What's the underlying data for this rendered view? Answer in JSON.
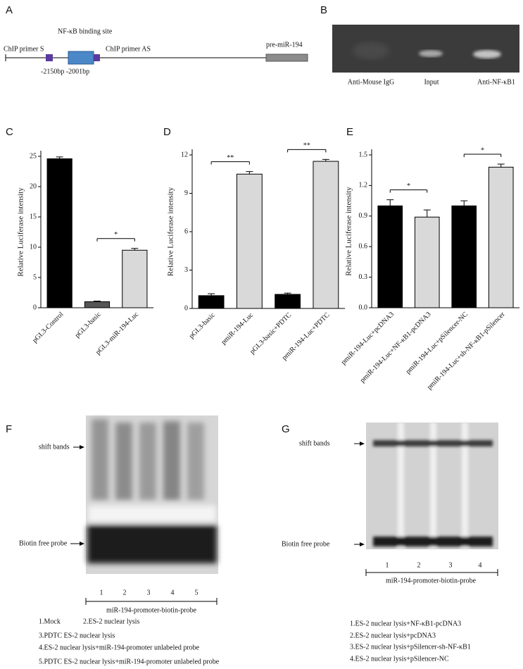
{
  "panels": {
    "A": {
      "label": "A",
      "binding_site": "NF-κB binding site",
      "primer_s": "ChIP primer S",
      "primer_as": "ChIP primer AS",
      "gene": "pre-miR-194",
      "positions": "-2150bp -2001bp"
    },
    "B": {
      "label": "B",
      "lanes": [
        "Anti-Mouse IgG",
        "Input",
        "Anti-NF-κB1"
      ]
    },
    "F": {
      "label": "F",
      "shift": "shift bands",
      "free": "Biotin free probe",
      "lanes": [
        1,
        2,
        3,
        4,
        5
      ],
      "probe": "miR-194-promoter-biotin-probe",
      "legend": [
        "1.Mock",
        "2.ES-2 nuclear lysis",
        "3.PDTC ES-2 nuclear lysis",
        "4.ES-2 nuclear lysis+miR-194-promoter unlabeled probe",
        "5.PDTC ES-2 nuclear lysis+miR-194-promoter unlabeled probe"
      ]
    },
    "G": {
      "label": "G",
      "shift": "shift bands",
      "free": "Biotin free probe",
      "lanes": [
        1,
        2,
        3,
        4
      ],
      "probe": "miR-194-promoter-biotin-probe",
      "legend": [
        "1.ES-2 nuclear lysis+NF-κB1-pcDNA3",
        "2.ES-2 nuclear lysis+pcDNA3",
        "3.ES-2 nuclear lysis+pSilencer-sh-NF-κB1",
        "4.ES-2 nuclear lysis+pSilencer-NC"
      ]
    }
  },
  "chart_data": [
    {
      "type": "bar",
      "panel": "C",
      "ylabel": "Relative Luciferase intensity",
      "categories": [
        "pGL3-Control",
        "pGL3-basic",
        "pGL3-miR-194-Luc"
      ],
      "values": [
        24.6,
        1.0,
        9.5
      ],
      "errors": [
        0.3,
        0.1,
        0.3
      ],
      "colors": [
        "#000000",
        "#555555",
        "#d9d9d9"
      ],
      "ylim": [
        0,
        25
      ],
      "yticks": [
        0,
        5,
        10,
        15,
        20,
        25
      ],
      "significance": [
        {
          "label": "*",
          "pair": [
            1,
            2
          ]
        }
      ]
    },
    {
      "type": "bar",
      "panel": "D",
      "ylabel": "Relative Luciferase intensity",
      "categories": [
        "pGL3-basic",
        "pmiR-194-Luc",
        "pGL3-basic+PDTC",
        "pmiR-194-Luc+PDTC"
      ],
      "values": [
        1.0,
        10.5,
        1.1,
        11.5
      ],
      "errors": [
        0.15,
        0.2,
        0.1,
        0.15
      ],
      "colors": [
        "#000000",
        "#d9d9d9",
        "#000000",
        "#d9d9d9"
      ],
      "ylim": [
        0,
        12
      ],
      "yticks": [
        0,
        3,
        6,
        9,
        12
      ],
      "significance": [
        {
          "label": "**",
          "pair": [
            0,
            1
          ]
        },
        {
          "label": "**",
          "pair": [
            2,
            3
          ]
        }
      ]
    },
    {
      "type": "bar",
      "panel": "E",
      "ylabel": "Relative Luciferase intensity",
      "categories": [
        "pmiR-194-Luc+pcDNA3",
        "pmiR-194-Luc+NF-κB1-pcDNA3",
        "pmiR-194-Luc+pSilencer-NC",
        "pmiR-194-Luc+sh-NF-κB1-pSilencer"
      ],
      "values": [
        1.0,
        0.89,
        1.0,
        1.38
      ],
      "errors": [
        0.06,
        0.07,
        0.05,
        0.03
      ],
      "colors": [
        "#000000",
        "#d9d9d9",
        "#000000",
        "#d9d9d9"
      ],
      "ylim": [
        0,
        1.5
      ],
      "yticks": [
        {
          "value": 0,
          "label": "0.0"
        },
        0.3,
        0.6,
        0.9,
        1.2,
        1.5
      ],
      "significance": [
        {
          "label": "*",
          "pair": [
            0,
            1
          ]
        },
        {
          "label": "*",
          "pair": [
            2,
            3
          ]
        }
      ]
    }
  ]
}
